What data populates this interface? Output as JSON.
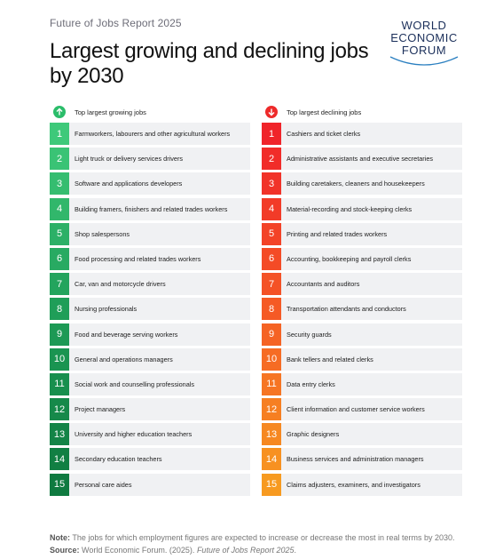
{
  "report_label": "Future of Jobs Report 2025",
  "title": "Largest growing and declining jobs by 2030",
  "logo": {
    "lines": [
      "WORLD",
      "ECONOMIC",
      "FORUM"
    ]
  },
  "colors": {
    "growing_gradient": [
      "#3ec97a",
      "#1f9e58",
      "#0f7a40"
    ],
    "declining_gradient": [
      "#f0242a",
      "#f55a25",
      "#f79a20"
    ],
    "row_bg": "#f0f1f3"
  },
  "growing": {
    "header": "Top largest growing jobs",
    "icon": "arrow-up-icon",
    "items": [
      {
        "rank": "1",
        "label": "Farmworkers, labourers and other agricultural workers"
      },
      {
        "rank": "2",
        "label": "Light truck or delivery services drivers"
      },
      {
        "rank": "3",
        "label": "Software and applications developers"
      },
      {
        "rank": "4",
        "label": "Building framers, finishers and related trades workers"
      },
      {
        "rank": "5",
        "label": "Shop salespersons"
      },
      {
        "rank": "6",
        "label": "Food processing and related trades workers"
      },
      {
        "rank": "7",
        "label": "Car, van and motorcycle drivers"
      },
      {
        "rank": "8",
        "label": "Nursing professionals"
      },
      {
        "rank": "9",
        "label": "Food and beverage serving workers"
      },
      {
        "rank": "10",
        "label": "General and operations managers"
      },
      {
        "rank": "11",
        "label": "Social work and counselling professionals"
      },
      {
        "rank": "12",
        "label": "Project managers"
      },
      {
        "rank": "13",
        "label": "University and higher education teachers"
      },
      {
        "rank": "14",
        "label": "Secondary education teachers"
      },
      {
        "rank": "15",
        "label": "Personal care aides"
      }
    ]
  },
  "declining": {
    "header": "Top largest declining jobs",
    "icon": "arrow-down-icon",
    "items": [
      {
        "rank": "1",
        "label": "Cashiers and ticket clerks"
      },
      {
        "rank": "2",
        "label": "Administrative assistants and executive secretaries"
      },
      {
        "rank": "3",
        "label": "Building caretakers, cleaners and housekeepers"
      },
      {
        "rank": "4",
        "label": "Material-recording and stock-keeping clerks"
      },
      {
        "rank": "5",
        "label": "Printing and related trades workers"
      },
      {
        "rank": "6",
        "label": "Accounting, bookkeeping and payroll clerks"
      },
      {
        "rank": "7",
        "label": "Accountants and auditors"
      },
      {
        "rank": "8",
        "label": "Transportation attendants and conductors"
      },
      {
        "rank": "9",
        "label": "Security guards"
      },
      {
        "rank": "10",
        "label": "Bank tellers and related clerks"
      },
      {
        "rank": "11",
        "label": "Data entry clerks"
      },
      {
        "rank": "12",
        "label": "Client information and customer service workers"
      },
      {
        "rank": "13",
        "label": "Graphic designers"
      },
      {
        "rank": "14",
        "label": "Business services and administration managers"
      },
      {
        "rank": "15",
        "label": "Claims adjusters, examiners, and investigators"
      }
    ]
  },
  "note": {
    "note_label": "Note:",
    "note_text": "The jobs for which employment figures are expected to increase or decrease the most in real terms by 2030.",
    "source_label": "Source:",
    "source_text": "World Economic Forum. (2025).",
    "source_title": "Future of Jobs Report 2025",
    "source_end": "."
  }
}
